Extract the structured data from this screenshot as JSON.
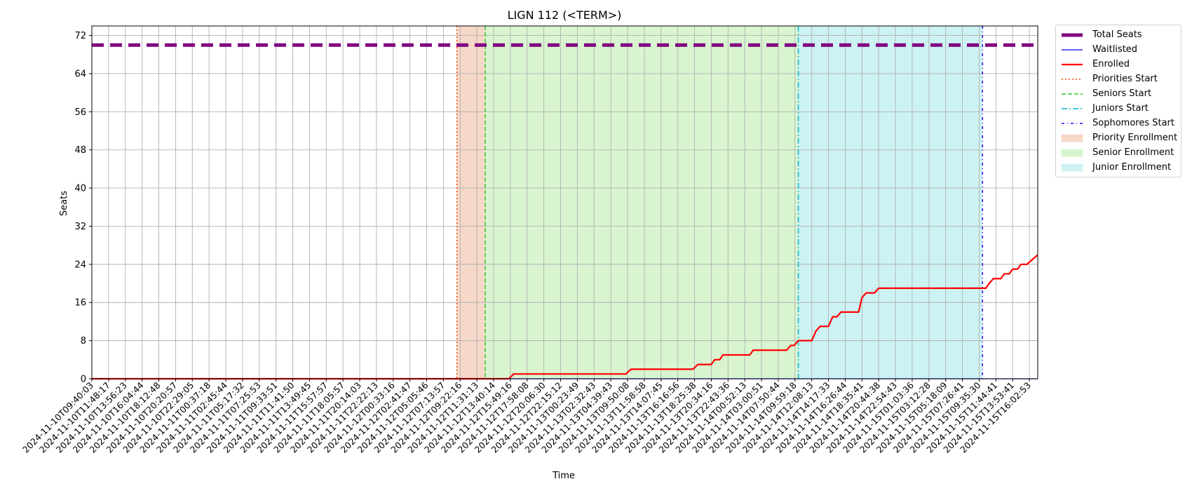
{
  "chart_data": {
    "type": "line",
    "title": "LIGN 112 (<TERM>)",
    "xlabel": "Time",
    "ylabel": "Seats",
    "ylim": [
      0,
      74
    ],
    "yticks": [
      0,
      8,
      16,
      24,
      32,
      40,
      48,
      56,
      64,
      72
    ],
    "grid": true,
    "legend_placement": "outside-upper-right",
    "xticks": [
      "2024-11-10T09:40:03",
      "2024-11-10T11:48:17",
      "2024-11-10T13:56:23",
      "2024-11-10T16:04:44",
      "2024-11-10T18:12:48",
      "2024-11-10T20:20:57",
      "2024-11-10T22:29:05",
      "2024-11-11T00:37:18",
      "2024-11-11T02:45:44",
      "2024-11-11T05:17:32",
      "2024-11-11T07:25:53",
      "2024-11-11T09:33:51",
      "2024-11-11T11:41:50",
      "2024-11-11T13:49:45",
      "2024-11-11T15:57:57",
      "2024-11-11T18:05:57",
      "2024-11-11T20:14:03",
      "2024-11-11T22:22:13",
      "2024-11-12T00:33:16",
      "2024-11-12T02:41:47",
      "2024-11-12T05:05:46",
      "2024-11-12T07:13:57",
      "2024-11-12T09:22:16",
      "2024-11-12T11:31:13",
      "2024-11-12T13:40:14",
      "2024-11-12T15:49:16",
      "2024-11-12T17:58:08",
      "2024-11-12T20:06:30",
      "2024-11-12T22:15:12",
      "2024-11-13T00:23:49",
      "2024-11-13T02:32:43",
      "2024-11-13T04:39:43",
      "2024-11-13T09:50:08",
      "2024-11-13T11:58:58",
      "2024-11-13T14:07:45",
      "2024-11-13T16:16:56",
      "2024-11-13T18:25:38",
      "2024-11-13T20:34:16",
      "2024-11-13T22:43:36",
      "2024-11-14T00:52:13",
      "2024-11-14T03:00:51",
      "2024-11-14T07:50:44",
      "2024-11-14T09:59:18",
      "2024-11-14T12:08:13",
      "2024-11-14T14:17:33",
      "2024-11-14T16:26:44",
      "2024-11-14T18:35:41",
      "2024-11-14T20:44:38",
      "2024-11-14T22:54:43",
      "2024-11-15T01:03:36",
      "2024-11-15T03:12:28",
      "2024-11-15T05:18:09",
      "2024-11-15T07:26:41",
      "2024-11-15T09:35:30",
      "2024-11-15T11:44:41",
      "2024-11-15T13:53:41",
      "2024-11-15T16:02:53"
    ],
    "series": [
      {
        "name": "Total Seats",
        "color": "#800080",
        "style": "dashed-thick",
        "points": [
          [
            0,
            70
          ],
          [
            56.5,
            70
          ]
        ]
      },
      {
        "name": "Waitlisted",
        "color": "#0000ff",
        "style": "solid",
        "points": [
          [
            0,
            0
          ],
          [
            56.5,
            0
          ]
        ]
      },
      {
        "name": "Enrolled",
        "color": "#ff0000",
        "style": "solid",
        "points": [
          [
            0,
            0
          ],
          [
            24.9,
            0
          ],
          [
            25.2,
            1
          ],
          [
            31.9,
            1
          ],
          [
            32.2,
            2
          ],
          [
            35.9,
            2
          ],
          [
            36.2,
            3
          ],
          [
            37.0,
            3
          ],
          [
            37.2,
            4
          ],
          [
            37.5,
            4
          ],
          [
            37.7,
            5
          ],
          [
            39.3,
            5
          ],
          [
            39.5,
            6
          ],
          [
            41.5,
            6
          ],
          [
            41.75,
            7
          ],
          [
            41.95,
            7
          ],
          [
            42.2,
            8
          ],
          [
            43.0,
            8
          ],
          [
            43.25,
            10
          ],
          [
            43.5,
            11
          ],
          [
            44.0,
            11
          ],
          [
            44.25,
            13
          ],
          [
            44.5,
            13
          ],
          [
            44.75,
            14
          ],
          [
            45.8,
            14
          ],
          [
            46.0,
            17
          ],
          [
            46.25,
            18
          ],
          [
            46.75,
            18
          ],
          [
            47.0,
            19
          ],
          [
            53.2,
            19
          ],
          [
            53.4,
            19
          ],
          [
            53.6,
            20
          ],
          [
            53.85,
            21
          ],
          [
            54.3,
            21
          ],
          [
            54.5,
            22
          ],
          [
            54.8,
            22
          ],
          [
            55.0,
            23
          ],
          [
            55.3,
            23
          ],
          [
            55.5,
            24
          ],
          [
            55.85,
            24
          ],
          [
            56.5,
            26
          ]
        ]
      }
    ],
    "markers": [
      {
        "name": "Priorities Start",
        "x": 21.8,
        "color": "#ff4500",
        "style": "dotted"
      },
      {
        "name": "Seniors Start",
        "x": 23.5,
        "color": "#32cd32",
        "style": "dashed"
      },
      {
        "name": "Juniors Start",
        "x": 42.2,
        "color": "#00bcd4",
        "style": "dashdot"
      },
      {
        "name": "Sophomores Start",
        "x": 53.2,
        "color": "#3300ff",
        "style": "dashdotdot"
      }
    ],
    "spans": [
      {
        "name": "Priority Enrollment",
        "x0": 21.8,
        "x1": 23.5,
        "color": "#f6d8c9"
      },
      {
        "name": "Senior Enrollment",
        "x0": 23.5,
        "x1": 42.2,
        "color": "#d9f5d0"
      },
      {
        "name": "Junior Enrollment",
        "x0": 42.2,
        "x1": 53.2,
        "color": "#cdf2f3"
      }
    ]
  }
}
